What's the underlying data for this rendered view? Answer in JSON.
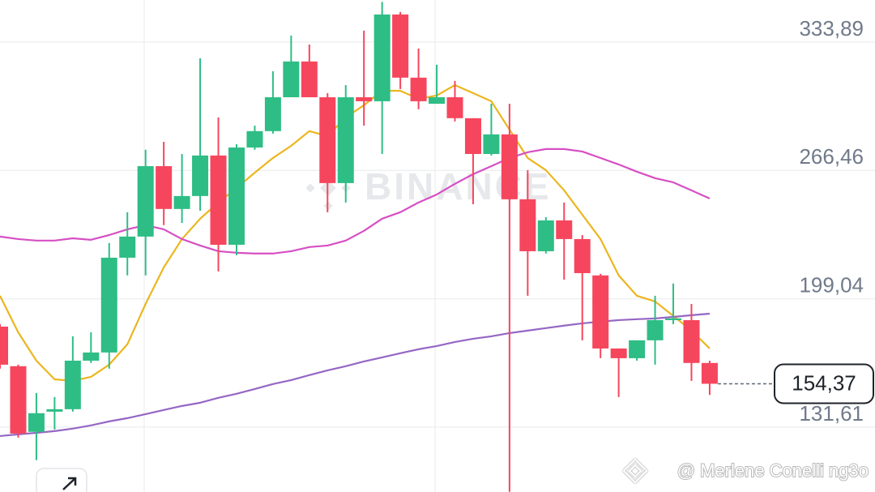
{
  "chart_data": {
    "type": "candlestick",
    "open": [
      184.4,
      163.6,
      129.1,
      139.7,
      141.0,
      166.5,
      170.8,
      220.6,
      231.7,
      268.7,
      246.2,
      253.0,
      274.3,
      227.4,
      278.5,
      287.1,
      304.9,
      323.7,
      304.9,
      259.8,
      304.9,
      302.8,
      348.4,
      315.2,
      301.5,
      304.9,
      293.9,
      275.1,
      285.4,
      251.3,
      224.0,
      240.2,
      230.4,
      211.3,
      172.9,
      167.8,
      177.2,
      187.8,
      187.8,
      165.3
    ],
    "high": [
      185.7,
      164.4,
      149.5,
      147.4,
      179.3,
      181.4,
      228.3,
      244.5,
      277.3,
      281.5,
      275.1,
      325.4,
      294.3,
      280.2,
      290.0,
      318.6,
      337.3,
      332.6,
      307.1,
      311.3,
      339.9,
      355.0,
      349.7,
      330.5,
      322.0,
      313.5,
      293.9,
      301.5,
      301.5,
      266.6,
      241.9,
      249.6,
      232.5,
      212.1,
      172.9,
      177.2,
      200.6,
      207.0,
      196.3,
      166.5
    ],
    "low": [
      162.3,
      126.1,
      114.2,
      130.3,
      139.7,
      165.3,
      162.3,
      211.3,
      211.3,
      237.7,
      238.9,
      245.3,
      213.4,
      221.9,
      277.3,
      285.8,
      304.9,
      304.9,
      244.5,
      249.6,
      290.0,
      275.1,
      309.2,
      298.6,
      301.5,
      292.2,
      248.7,
      274.3,
      97.6,
      200.6,
      222.8,
      209.1,
      177.2,
      167.8,
      147.4,
      166.5,
      164.4,
      185.7,
      155.9,
      148.5
    ],
    "close": [
      164.4,
      128.2,
      138.9,
      141.0,
      166.5,
      170.8,
      220.6,
      231.7,
      268.7,
      246.2,
      253.0,
      274.3,
      227.4,
      278.5,
      287.1,
      304.9,
      323.7,
      304.9,
      259.8,
      304.9,
      302.8,
      348.4,
      315.2,
      302.8,
      304.9,
      293.9,
      275.1,
      285.4,
      251.3,
      224.0,
      240.2,
      230.4,
      212.5,
      172.9,
      167.8,
      177.2,
      187.8,
      188.7,
      165.3,
      154.37
    ],
    "up_color": "#2ebd85",
    "down_color": "#f6465d",
    "lines": [
      {
        "color": "#ebb61f",
        "values": [
          200.6,
          181.4,
          166.5,
          156.7,
          155.9,
          158.0,
          164.4,
          175.1,
          196.3,
          215.5,
          230.4,
          241.1,
          249.6,
          257.2,
          265.3,
          273.0,
          279.4,
          287.1,
          284.5,
          294.3,
          300.7,
          308.3,
          308.3,
          304.1,
          305.8,
          311.3,
          307.1,
          302.8,
          287.9,
          273.0,
          266.6,
          256.0,
          243.2,
          230.4,
          211.3,
          200.6,
          197.6,
          190.0,
          182.3,
          172.9
        ]
      },
      {
        "color": "#d64fc4",
        "values": [
          231.7,
          230.4,
          229.6,
          229.6,
          230.8,
          230.0,
          232.5,
          235.5,
          237.7,
          235.5,
          230.4,
          227.0,
          224.0,
          223.2,
          222.8,
          222.8,
          224.0,
          226.2,
          227.0,
          229.6,
          234.7,
          241.1,
          244.5,
          249.6,
          253.8,
          259.4,
          264.5,
          268.7,
          273.0,
          276.0,
          277.7,
          277.7,
          276.4,
          273.0,
          269.6,
          265.8,
          262.4,
          260.2,
          256.0,
          251.7
        ]
      },
      {
        "color": "#9567c4",
        "values": [
          126.9,
          127.8,
          128.6,
          129.5,
          130.8,
          132.5,
          134.6,
          136.3,
          138.4,
          140.6,
          142.7,
          144.4,
          147.0,
          149.1,
          151.6,
          154.2,
          156.3,
          158.9,
          161.4,
          163.6,
          166.1,
          168.2,
          170.4,
          172.5,
          174.2,
          176.3,
          178.0,
          179.3,
          181.0,
          182.3,
          183.6,
          184.9,
          186.1,
          187.0,
          187.8,
          188.3,
          188.7,
          189.5,
          190.4,
          191.2
        ]
      }
    ],
    "ylim": [
      97.5,
      356.0
    ],
    "yticks": [
      {
        "value": 131.61,
        "label": "131,61"
      },
      {
        "value": 199.04,
        "label": "199,04"
      },
      {
        "value": 266.46,
        "label": "266,46"
      },
      {
        "value": 333.89,
        "label": "333,89"
      }
    ],
    "grid": true,
    "last_price": {
      "value": 154.37,
      "label": "154,37"
    },
    "watermark": "BINANCE",
    "footer": "@ Merlene Conelli ng3o"
  }
}
